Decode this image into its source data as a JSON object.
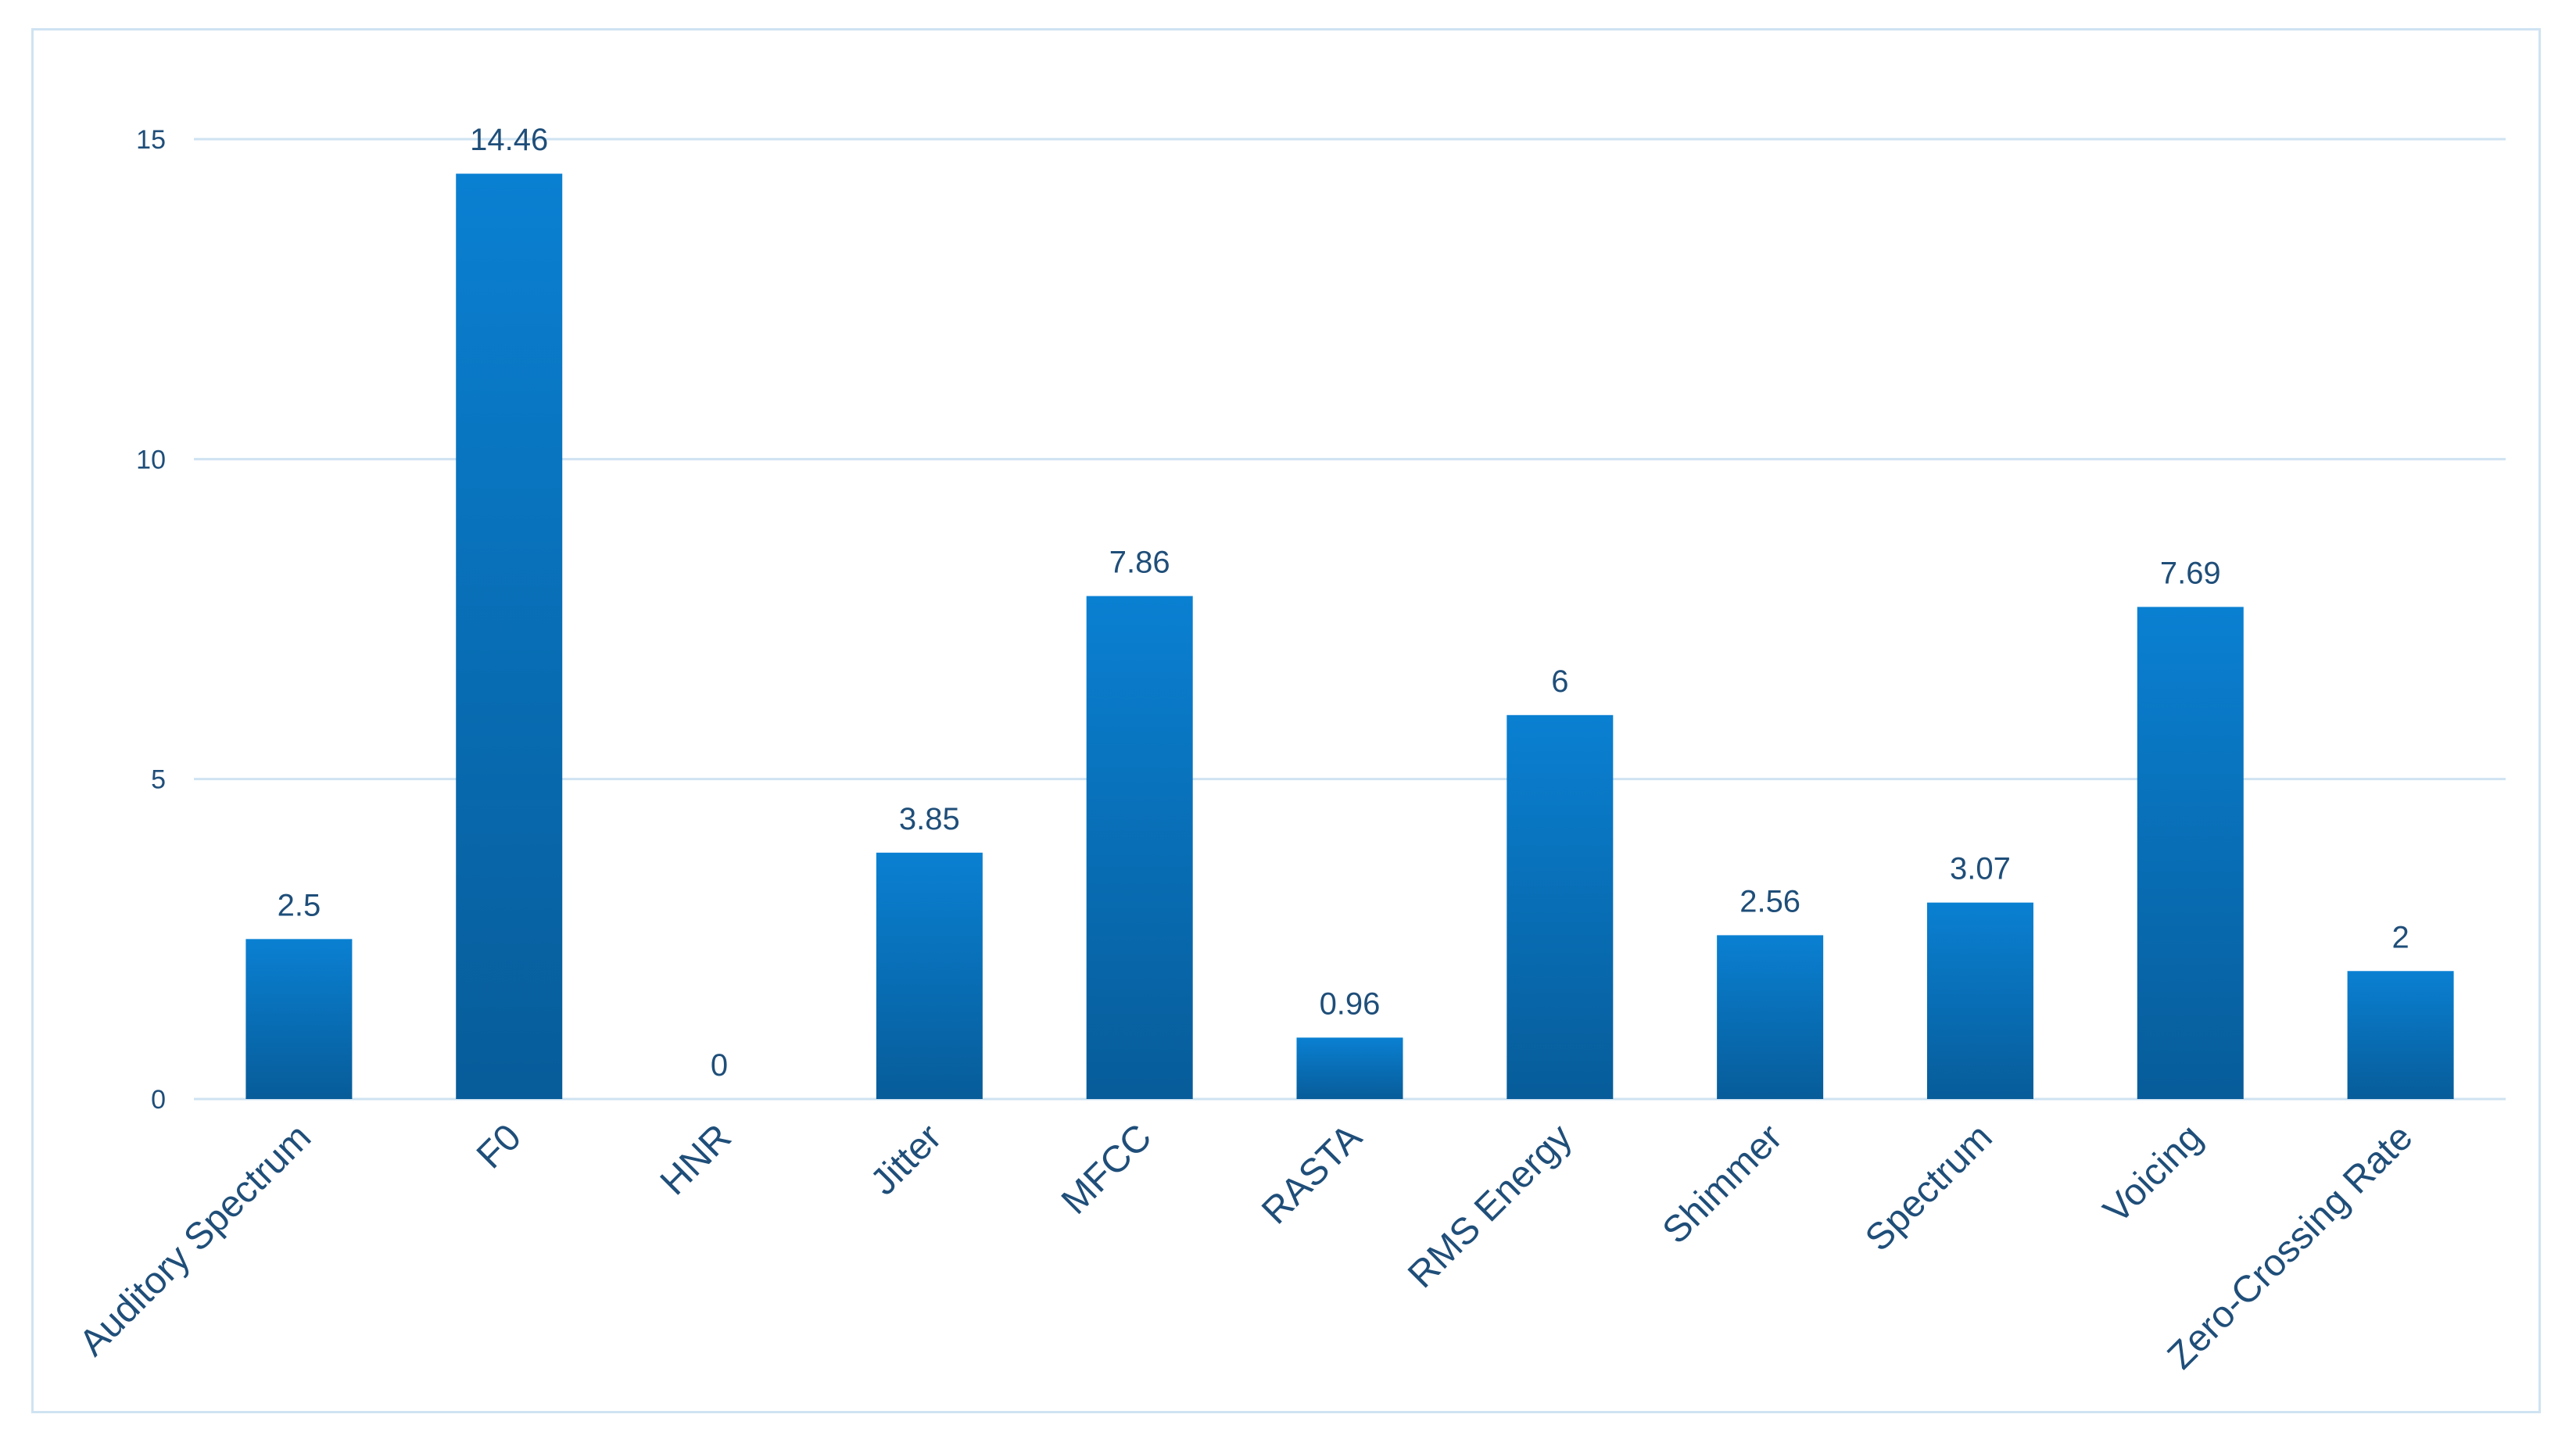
{
  "chart_data": {
    "type": "bar",
    "categories": [
      "Auditory Spectrum",
      "F0",
      "HNR",
      "Jitter",
      "MFCC",
      "RASTA",
      "RMS Energy",
      "Shimmer",
      "Spectrum",
      "Voicing",
      "Zero-Crossing Rate"
    ],
    "values": [
      2.5,
      14.46,
      0,
      3.85,
      7.86,
      0.96,
      6,
      2.56,
      3.07,
      7.69,
      2
    ],
    "data_labels": [
      "2.5",
      "14.46",
      "0",
      "3.85",
      "7.86",
      "0.96",
      "6",
      "2.56",
      "3.07",
      "7.69",
      "2"
    ],
    "title": "",
    "xlabel": "",
    "ylabel": "",
    "ylim": [
      0,
      15
    ],
    "yticks": [
      0,
      5,
      10,
      15
    ],
    "ytick_labels": [
      "0",
      "5",
      "10",
      "15"
    ],
    "grid": "horizontal",
    "legend": "none",
    "colors": {
      "bar_top": "#0a80d2",
      "bar_bottom": "#075c99",
      "grid": "#cfe3f2",
      "text": "#1f4e79",
      "frame": "#cfe3f2"
    }
  }
}
